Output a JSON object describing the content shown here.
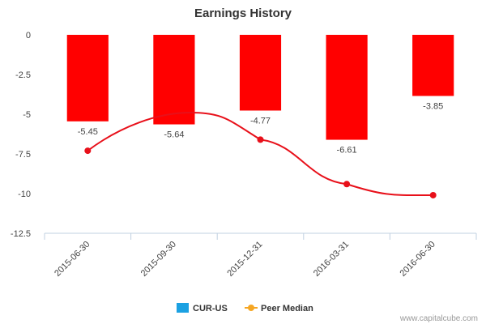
{
  "chart_data": {
    "type": "bar",
    "title": "Earnings History",
    "xlabel": "",
    "ylabel": "",
    "categories": [
      "2015-06-30",
      "2015-09-30",
      "2015-12-31",
      "2016-03-31",
      "2016-06-30"
    ],
    "series": [
      {
        "name": "CUR-US",
        "type": "bar",
        "values": [
          -5.45,
          -5.64,
          -4.77,
          -6.61,
          -3.85
        ],
        "color": "#ff0000",
        "legend_color": "#1ba1e2"
      },
      {
        "name": "Peer Median",
        "type": "line",
        "values": [
          -7.3,
          null,
          -6.6,
          -9.4,
          -10.1
        ],
        "color": "#e8101a",
        "legend_color": "#f5a623"
      }
    ],
    "data_labels": [
      "-5.45",
      "-5.64",
      "-4.77",
      "-6.61",
      "-3.85"
    ],
    "y_ticks": [
      "0",
      "-2.5",
      "-5",
      "-7.5",
      "-10",
      "-12.5"
    ],
    "y_tick_values": [
      0,
      -2.5,
      -5,
      -7.5,
      -10,
      -12.5
    ],
    "ylim": [
      -12.5,
      0
    ],
    "grid": false,
    "legend_position": "bottom"
  },
  "credit": "www.capitalcube.com"
}
